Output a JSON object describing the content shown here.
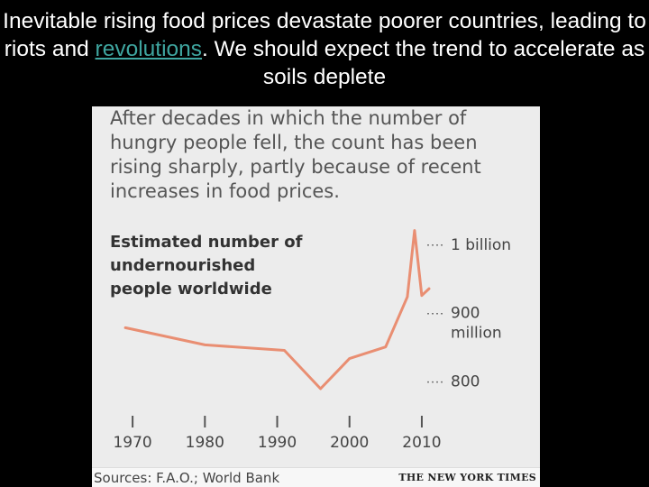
{
  "slide": {
    "title_part1": "Inevitable rising food prices devastate poorer countries, leading to riots and ",
    "title_link": "revolutions",
    "title_part2": ". We should expect the trend to accelerate as soils deplete"
  },
  "figure": {
    "caption": "After decades in which the number of hungry people fell, the count has been rising sharply, partly because of recent increases in food prices.",
    "source": "Sources: F.A.O.; World Bank",
    "credit": "THE NEW YORK TIMES"
  },
  "chart_data": {
    "type": "line",
    "title": "Estimated number of undernourished people worldwide",
    "xlabel": "",
    "ylabel": "",
    "xlim": [
      1965,
      2013
    ],
    "ylim": [
      760,
      1030
    ],
    "x_ticks": [
      1970,
      1980,
      1990,
      2000,
      2010
    ],
    "y_ticks": [
      {
        "value": 1000,
        "label_lines": [
          "1 billion"
        ]
      },
      {
        "value": 900,
        "label_lines": [
          "900",
          "million"
        ]
      },
      {
        "value": 800,
        "label_lines": [
          "800"
        ]
      }
    ],
    "grid": false,
    "series": [
      {
        "name": "",
        "color": "#e98e72",
        "points": [
          {
            "x": 1969,
            "y": 878
          },
          {
            "x": 1980,
            "y": 853
          },
          {
            "x": 1991,
            "y": 845
          },
          {
            "x": 1996,
            "y": 789
          },
          {
            "x": 2000,
            "y": 833
          },
          {
            "x": 2005,
            "y": 850
          },
          {
            "x": 2008,
            "y": 923
          },
          {
            "x": 2009,
            "y": 1020
          },
          {
            "x": 2010,
            "y": 925
          },
          {
            "x": 2011,
            "y": 935
          }
        ]
      }
    ]
  }
}
